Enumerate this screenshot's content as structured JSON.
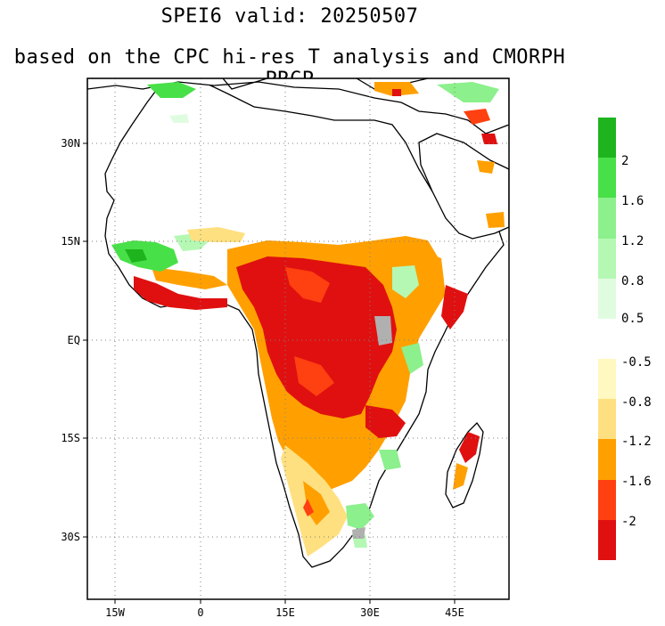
{
  "title": "SPEI6   valid: 20250507",
  "subtitle": "based on the CPC hi-res T analysis and CMORPH PRCP",
  "map": {
    "lon_ticks": [
      "15W",
      "0",
      "15E",
      "30E",
      "45E"
    ],
    "lat_ticks": [
      "30N",
      "15N",
      "EQ",
      "15S",
      "30S"
    ],
    "grid": "dotted",
    "land_color": "#ffffff",
    "border_color": "#000000",
    "admin_border_color": "#a0a0a0"
  },
  "legend_wet": {
    "labels": [
      "2",
      "1.6",
      "1.2",
      "0.8",
      "0.5"
    ],
    "colors": [
      "#1eb41e",
      "#48e048",
      "#8cf08c",
      "#b4f8b4",
      "#e0fce0"
    ]
  },
  "legend_dry": {
    "labels": [
      "-0.5",
      "-0.8",
      "-1.2",
      "-1.6",
      "-2"
    ],
    "colors": [
      "#fff8c0",
      "#ffe080",
      "#ffa000",
      "#ff4010",
      "#e01010"
    ]
  }
}
